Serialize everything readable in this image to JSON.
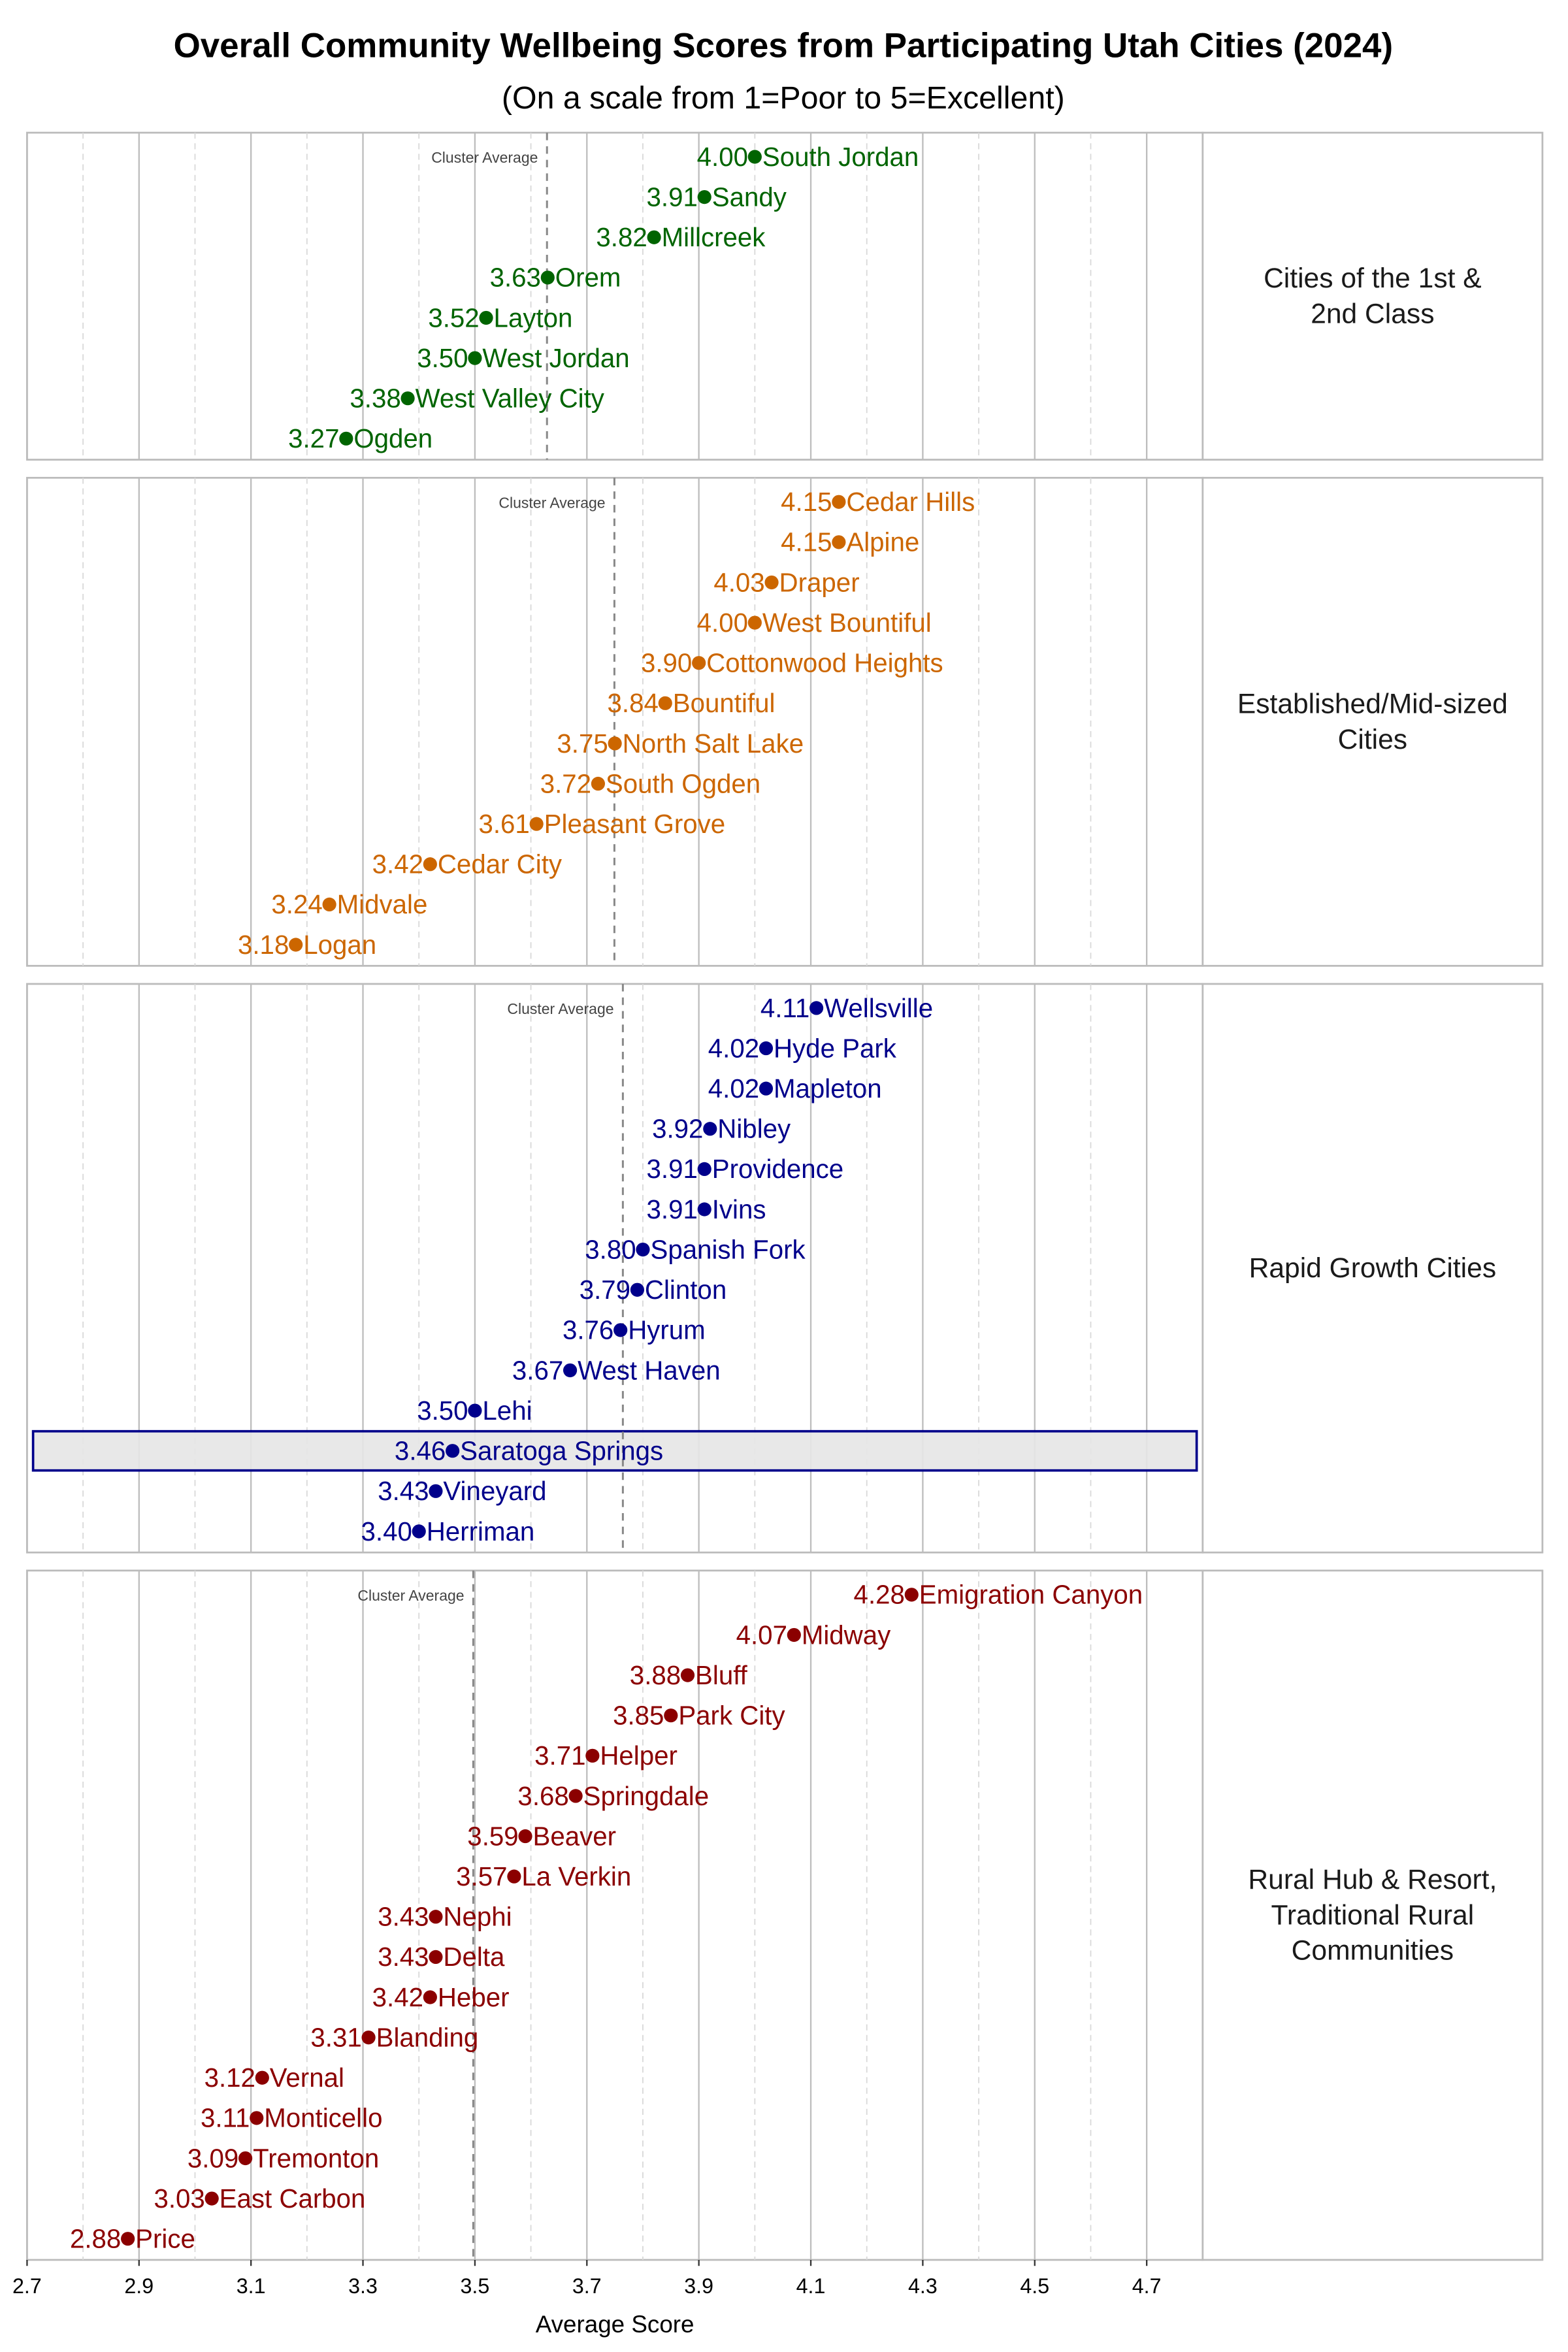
{
  "chart_data": {
    "type": "scatter",
    "title": "Overall Community Wellbeing Scores from Participating Utah Cities (2024)",
    "subtitle": "(On a scale from 1=Poor to 5=Excellent)",
    "xlabel": "Average Score",
    "xlim": [
      2.7,
      4.8
    ],
    "xticks": [
      "2.7",
      "2.9",
      "3.1",
      "3.3",
      "3.5",
      "3.7",
      "3.9",
      "4.1",
      "4.3",
      "4.5",
      "4.7"
    ],
    "grid": true,
    "average_label": "Cluster Average",
    "highlight": "Saratoga Springs",
    "highlight_color": "#00008b",
    "panels": [
      {
        "name": "Cities of the 1st & 2nd Class",
        "strip": [
          "Cities of the 1st &",
          "2nd Class"
        ],
        "color": "#006400",
        "points": [
          [
            "South Jordan",
            4.0
          ],
          [
            "Sandy",
            3.91
          ],
          [
            "Millcreek",
            3.82
          ],
          [
            "Orem",
            3.63
          ],
          [
            "Layton",
            3.52
          ],
          [
            "West Jordan",
            3.5
          ],
          [
            "West Valley City",
            3.38
          ],
          [
            "Ogden",
            3.27
          ]
        ]
      },
      {
        "name": "Established/Mid-sized Cities",
        "strip": [
          "Established/Mid-sized",
          "Cities"
        ],
        "color": "#cc6600",
        "points": [
          [
            "Cedar Hills",
            4.15
          ],
          [
            "Alpine",
            4.15
          ],
          [
            "Draper",
            4.03
          ],
          [
            "West Bountiful",
            4.0
          ],
          [
            "Cottonwood Heights",
            3.9
          ],
          [
            "Bountiful",
            3.84
          ],
          [
            "North Salt Lake",
            3.75
          ],
          [
            "South Ogden",
            3.72
          ],
          [
            "Pleasant Grove",
            3.61
          ],
          [
            "Cedar City",
            3.42
          ],
          [
            "Midvale",
            3.24
          ],
          [
            "Logan",
            3.18
          ]
        ]
      },
      {
        "name": "Rapid Growth Cities",
        "strip": [
          "Rapid Growth Cities"
        ],
        "color": "#00008b",
        "points": [
          [
            "Wellsville",
            4.11
          ],
          [
            "Hyde Park",
            4.02
          ],
          [
            "Mapleton",
            4.02
          ],
          [
            "Nibley",
            3.92
          ],
          [
            "Providence",
            3.91
          ],
          [
            "Ivins",
            3.91
          ],
          [
            "Spanish Fork",
            3.8
          ],
          [
            "Clinton",
            3.79
          ],
          [
            "Hyrum",
            3.76
          ],
          [
            "West Haven",
            3.67
          ],
          [
            "Lehi",
            3.5
          ],
          [
            "Saratoga Springs",
            3.46
          ],
          [
            "Vineyard",
            3.43
          ],
          [
            "Herriman",
            3.4
          ]
        ]
      },
      {
        "name": "Rural Hub & Resort, Traditional Rural Communities",
        "strip": [
          "Rural Hub & Resort,",
          "Traditional Rural",
          "Communities"
        ],
        "color": "#8b0000",
        "points": [
          [
            "Emigration Canyon",
            4.28
          ],
          [
            "Midway",
            4.07
          ],
          [
            "Bluff",
            3.88
          ],
          [
            "Park City",
            3.85
          ],
          [
            "Helper",
            3.71
          ],
          [
            "Springdale",
            3.68
          ],
          [
            "Beaver",
            3.59
          ],
          [
            "La Verkin",
            3.57
          ],
          [
            "Nephi",
            3.43
          ],
          [
            "Delta",
            3.43
          ],
          [
            "Heber",
            3.42
          ],
          [
            "Blanding",
            3.31
          ],
          [
            "Vernal",
            3.12
          ],
          [
            "Monticello",
            3.11
          ],
          [
            "Tremonton",
            3.09
          ],
          [
            "East Carbon",
            3.03
          ],
          [
            "Price",
            2.88
          ]
        ]
      }
    ]
  }
}
